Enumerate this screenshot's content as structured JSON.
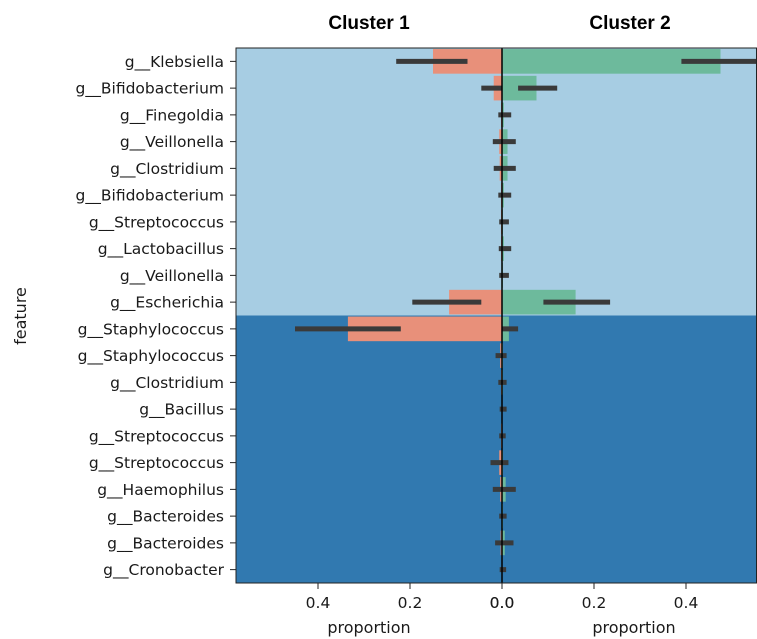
{
  "chart_data": {
    "type": "bar",
    "orientation": "horizontal-diverging",
    "ylabel": "feature",
    "features": [
      "g__Klebsiella",
      "g__Bifidobacterium",
      "g__Finegoldia",
      "g__Veillonella",
      "g__Clostridium",
      "g__Bifidobacterium",
      "g__Streptococcus",
      "g__Lactobacillus",
      "g__Veillonella",
      "g__Escherichia",
      "g__Staphylococcus",
      "g__Staphylococcus",
      "g__Clostridium",
      "g__Bacillus",
      "g__Streptococcus",
      "g__Streptococcus",
      "g__Haemophilus",
      "g__Bacteroides",
      "g__Bacteroides",
      "g__Cronobacter"
    ],
    "group_split_after_index": 9,
    "panels": [
      {
        "title": "Cluster 1",
        "xlabel": "proportion",
        "direction": "reversed",
        "xlim": [
          0,
          0.56
        ],
        "ticks": [
          "0.4",
          "0.2",
          "0.0"
        ],
        "tick_values": [
          0.4,
          0.2,
          0.0
        ],
        "bar_color": "#e8907a",
        "values": [
          0.15,
          0.018,
          0.002,
          0.006,
          0.005,
          0.002,
          0.002,
          0.002,
          0.001,
          0.115,
          0.335,
          0.004,
          0.002,
          0.001,
          0.002,
          0.006,
          0.004,
          0.001,
          0.003,
          0.001
        ],
        "err_low": [
          0.075,
          0.001,
          0.0,
          0.0,
          0.0,
          0.0,
          0.0,
          0.0,
          0.0,
          0.045,
          0.22,
          0.0,
          0.0,
          0.0,
          0.0,
          0.0,
          0.0,
          0.0,
          0.0,
          0.0
        ],
        "err_high": [
          0.23,
          0.045,
          0.008,
          0.02,
          0.018,
          0.008,
          0.006,
          0.007,
          0.006,
          0.195,
          0.45,
          0.014,
          0.008,
          0.005,
          0.006,
          0.025,
          0.02,
          0.006,
          0.015,
          0.005
        ]
      },
      {
        "title": "Cluster 2",
        "xlabel": "proportion",
        "direction": "normal",
        "xlim": [
          0,
          0.56
        ],
        "ticks": [
          "0.0",
          "0.2",
          "0.4"
        ],
        "tick_values": [
          0.0,
          0.2,
          0.4
        ],
        "bar_color": "#6dba9c",
        "values": [
          0.475,
          0.075,
          0.004,
          0.012,
          0.012,
          0.004,
          0.002,
          0.004,
          0.002,
          0.16,
          0.015,
          0.002,
          0.002,
          0.001,
          0.001,
          0.002,
          0.008,
          0.002,
          0.006,
          0.001
        ],
        "err_low": [
          0.39,
          0.035,
          0.0,
          0.0,
          0.0,
          0.0,
          0.0,
          0.0,
          0.0,
          0.09,
          0.0,
          0.0,
          0.0,
          0.0,
          0.0,
          0.0,
          0.0,
          0.0,
          0.0,
          0.0
        ],
        "err_high": [
          0.56,
          0.12,
          0.02,
          0.03,
          0.03,
          0.02,
          0.015,
          0.02,
          0.015,
          0.235,
          0.035,
          0.01,
          0.01,
          0.01,
          0.008,
          0.014,
          0.03,
          0.01,
          0.025,
          0.009
        ]
      }
    ],
    "background_colors": {
      "upper_group": "#a7cde3",
      "lower_group": "#3179b0"
    },
    "errorbar_color": "#3a3a3a",
    "center_line_color": "#000000"
  }
}
